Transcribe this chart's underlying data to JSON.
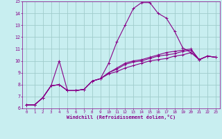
{
  "title": "",
  "xlabel": "Windchill (Refroidissement éolien,°C)",
  "ylabel": "",
  "background_color": "#c8eef0",
  "grid_color": "#a0cccc",
  "line_color": "#880088",
  "xlim": [
    -0.5,
    23.5
  ],
  "ylim": [
    6,
    15
  ],
  "xticks": [
    0,
    1,
    2,
    3,
    4,
    5,
    6,
    7,
    8,
    9,
    10,
    11,
    12,
    13,
    14,
    15,
    16,
    17,
    18,
    19,
    20,
    21,
    22,
    23
  ],
  "yticks": [
    6,
    7,
    8,
    9,
    10,
    11,
    12,
    13,
    14,
    15
  ],
  "series": [
    [
      6.3,
      6.3,
      6.9,
      7.9,
      10.0,
      7.5,
      7.5,
      7.6,
      8.3,
      8.5,
      9.8,
      11.6,
      13.0,
      14.4,
      14.9,
      14.9,
      14.0,
      13.6,
      12.5,
      11.1,
      10.7,
      10.1,
      10.4,
      10.3
    ],
    [
      6.3,
      6.3,
      6.9,
      7.9,
      8.0,
      7.5,
      7.5,
      7.6,
      8.3,
      8.5,
      9.0,
      9.4,
      9.8,
      10.0,
      10.1,
      10.3,
      10.5,
      10.7,
      10.8,
      10.9,
      11.0,
      10.1,
      10.4,
      10.3
    ],
    [
      6.3,
      6.3,
      6.9,
      7.9,
      8.0,
      7.5,
      7.5,
      7.6,
      8.3,
      8.5,
      9.0,
      9.3,
      9.7,
      9.9,
      10.0,
      10.2,
      10.4,
      10.5,
      10.6,
      10.8,
      10.9,
      10.1,
      10.4,
      10.3
    ],
    [
      6.3,
      6.3,
      6.9,
      7.9,
      8.0,
      7.5,
      7.5,
      7.6,
      8.3,
      8.5,
      8.9,
      9.1,
      9.4,
      9.6,
      9.8,
      10.0,
      10.1,
      10.2,
      10.4,
      10.5,
      10.7,
      10.1,
      10.4,
      10.3
    ]
  ]
}
